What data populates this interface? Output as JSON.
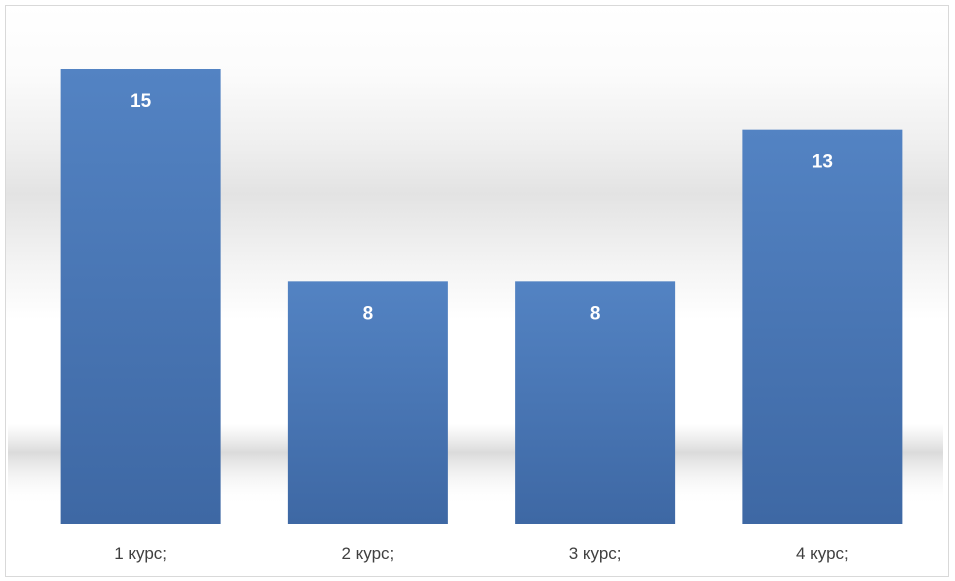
{
  "chart_data": {
    "type": "bar",
    "categories": [
      "1 курс;",
      "2 курс;",
      "3 курс;",
      "4 курс;"
    ],
    "values": [
      15,
      8,
      8,
      13
    ],
    "title": "",
    "xlabel": "",
    "ylabel": "",
    "ylim": [
      0,
      16
    ],
    "grid": false,
    "legend": "none",
    "data_labels": [
      "15",
      "8",
      "8",
      "13"
    ],
    "bar_color": "#4a78b8",
    "label_color": "#ffffff",
    "tick_color": "#404040"
  }
}
